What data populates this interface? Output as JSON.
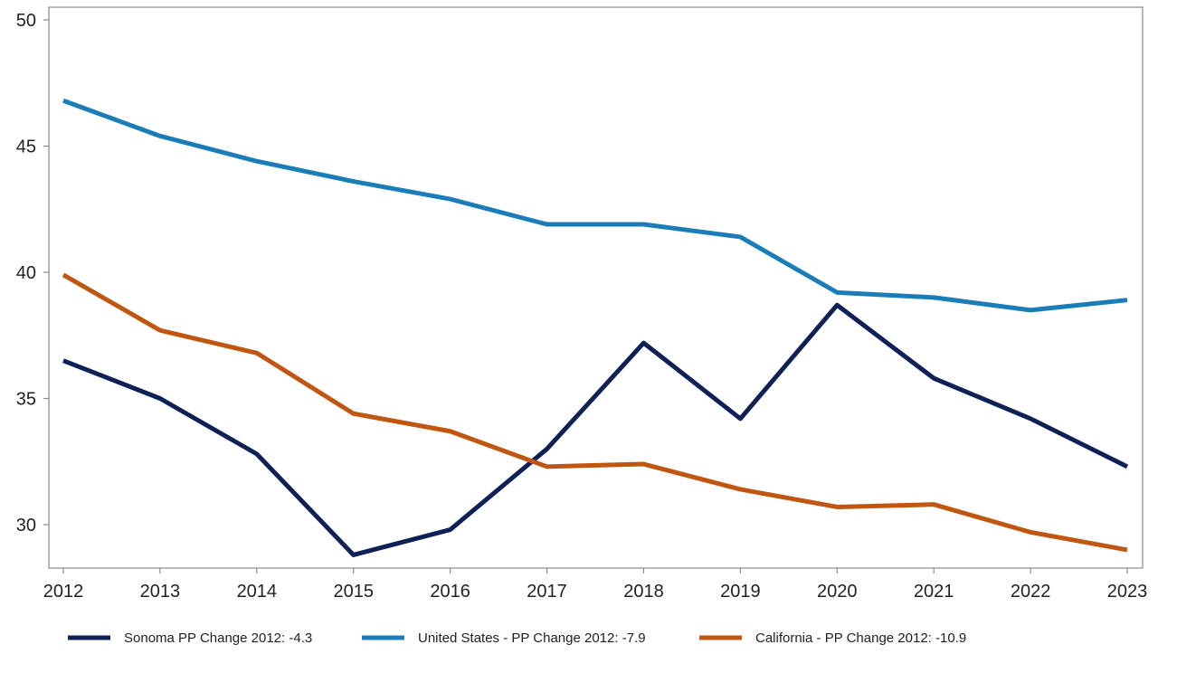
{
  "chart_data": {
    "type": "line",
    "title": "",
    "xlabel": "",
    "ylabel": "",
    "x": [
      2012,
      2013,
      2014,
      2015,
      2016,
      2017,
      2018,
      2019,
      2020,
      2021,
      2022,
      2023
    ],
    "ylim": [
      28.5,
      50.5
    ],
    "yticks": [
      30,
      35,
      40,
      45,
      50
    ],
    "grid": false,
    "legend_position": "bottom",
    "series": [
      {
        "name": "Sonoma PP Change 2012: -4.3",
        "color": "#0d2157",
        "values": [
          36.5,
          35.0,
          32.8,
          28.8,
          29.8,
          33.0,
          37.2,
          34.2,
          38.7,
          35.8,
          34.2,
          32.3
        ]
      },
      {
        "name": "United States - PP Change 2012: -7.9",
        "color": "#1a7db8",
        "values": [
          46.8,
          45.4,
          44.4,
          43.6,
          42.9,
          41.9,
          41.9,
          41.4,
          39.2,
          39.0,
          38.5,
          38.9
        ]
      },
      {
        "name": "California - PP Change 2012: -10.9",
        "color": "#c0560f",
        "values": [
          39.9,
          37.7,
          36.8,
          34.4,
          33.7,
          32.3,
          32.4,
          31.4,
          30.7,
          30.8,
          29.7,
          29.0
        ]
      }
    ]
  }
}
